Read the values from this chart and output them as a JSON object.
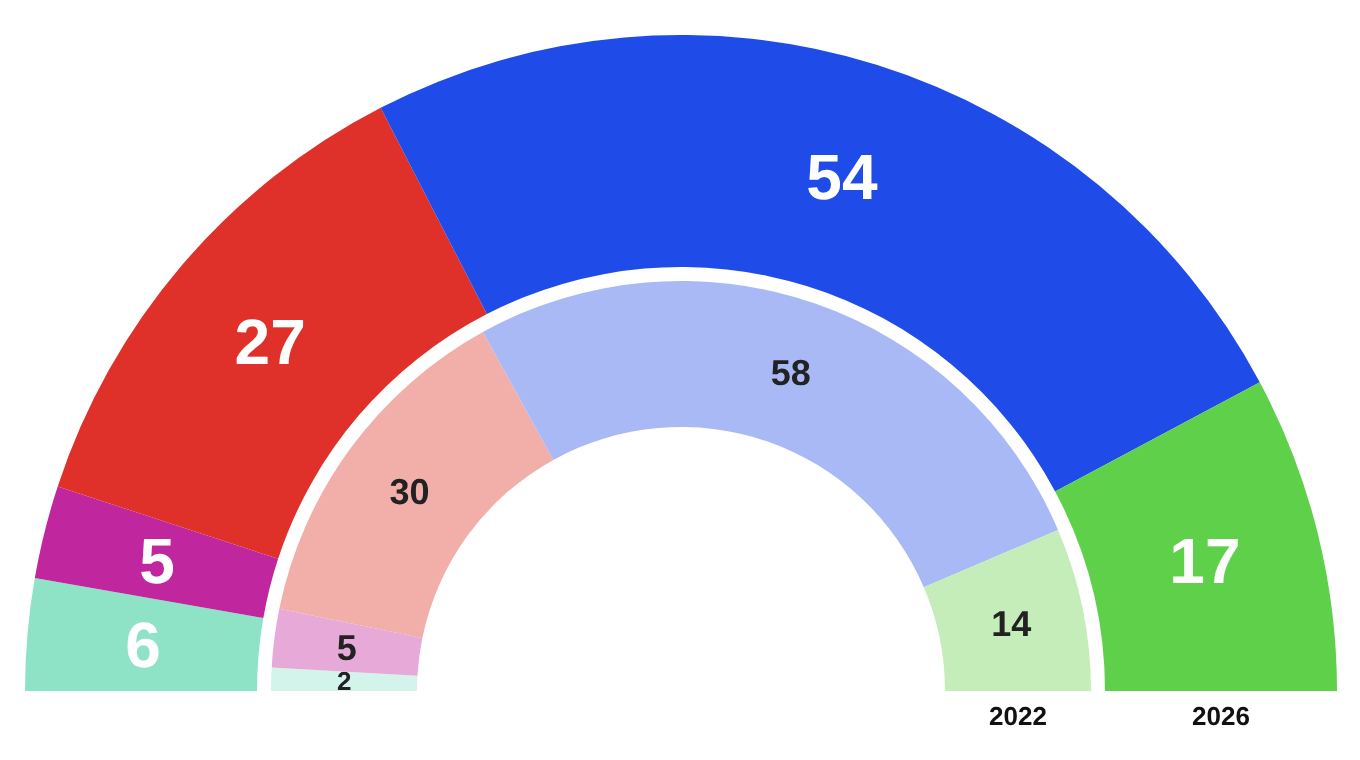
{
  "chart_data": {
    "type": "donut",
    "categories": [
      null,
      null,
      null,
      null,
      null
    ],
    "data_labels": true,
    "series": [
      {
        "name": "2022",
        "values": [
          2,
          5,
          30,
          58,
          14
        ],
        "colors": [
          "#d3f4ea",
          "#e6a9d8",
          "#f2aea8",
          "#a9b9f5",
          "#c5edb9"
        ]
      },
      {
        "name": "2026",
        "values": [
          6,
          5,
          27,
          54,
          17
        ],
        "colors": [
          "#8ee3c6",
          "#c0269e",
          "#e0302a",
          "#1f4ce8",
          "#5fd049"
        ]
      }
    ]
  }
}
